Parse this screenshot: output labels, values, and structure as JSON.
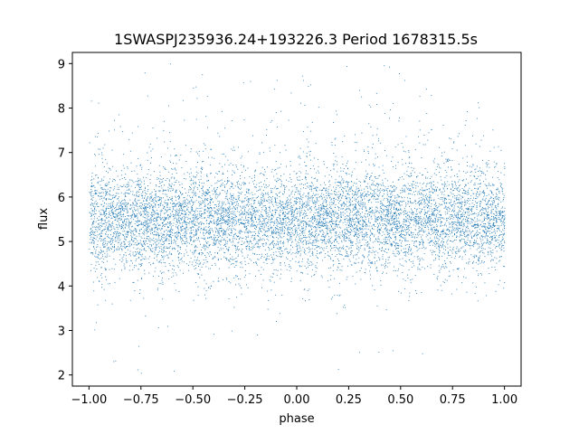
{
  "chart_data": {
    "type": "scatter",
    "title": "1SWASPJ235936.24+193226.3 Period 1678315.5s",
    "xlabel": "phase",
    "ylabel": "flux",
    "xlim": [
      -1.08,
      1.08
    ],
    "ylim": [
      1.75,
      9.25
    ],
    "xticks": [
      -1.0,
      -0.75,
      -0.5,
      -0.25,
      0.0,
      0.25,
      0.5,
      0.75,
      1.0
    ],
    "xtick_labels": [
      "−1.00",
      "−0.75",
      "−0.50",
      "−0.25",
      "0.00",
      "0.25",
      "0.50",
      "0.75",
      "1.00"
    ],
    "yticks": [
      2,
      3,
      4,
      5,
      6,
      7,
      8,
      9
    ],
    "ytick_labels": [
      "2",
      "3",
      "4",
      "5",
      "6",
      "7",
      "8",
      "9"
    ],
    "grid": false,
    "point_color": "#1f77b4",
    "x_range": [
      -1.0,
      1.0
    ],
    "baseline_flux": 5.5,
    "n_points": 9000,
    "flux_range": [
      2.0,
      9.0
    ]
  }
}
